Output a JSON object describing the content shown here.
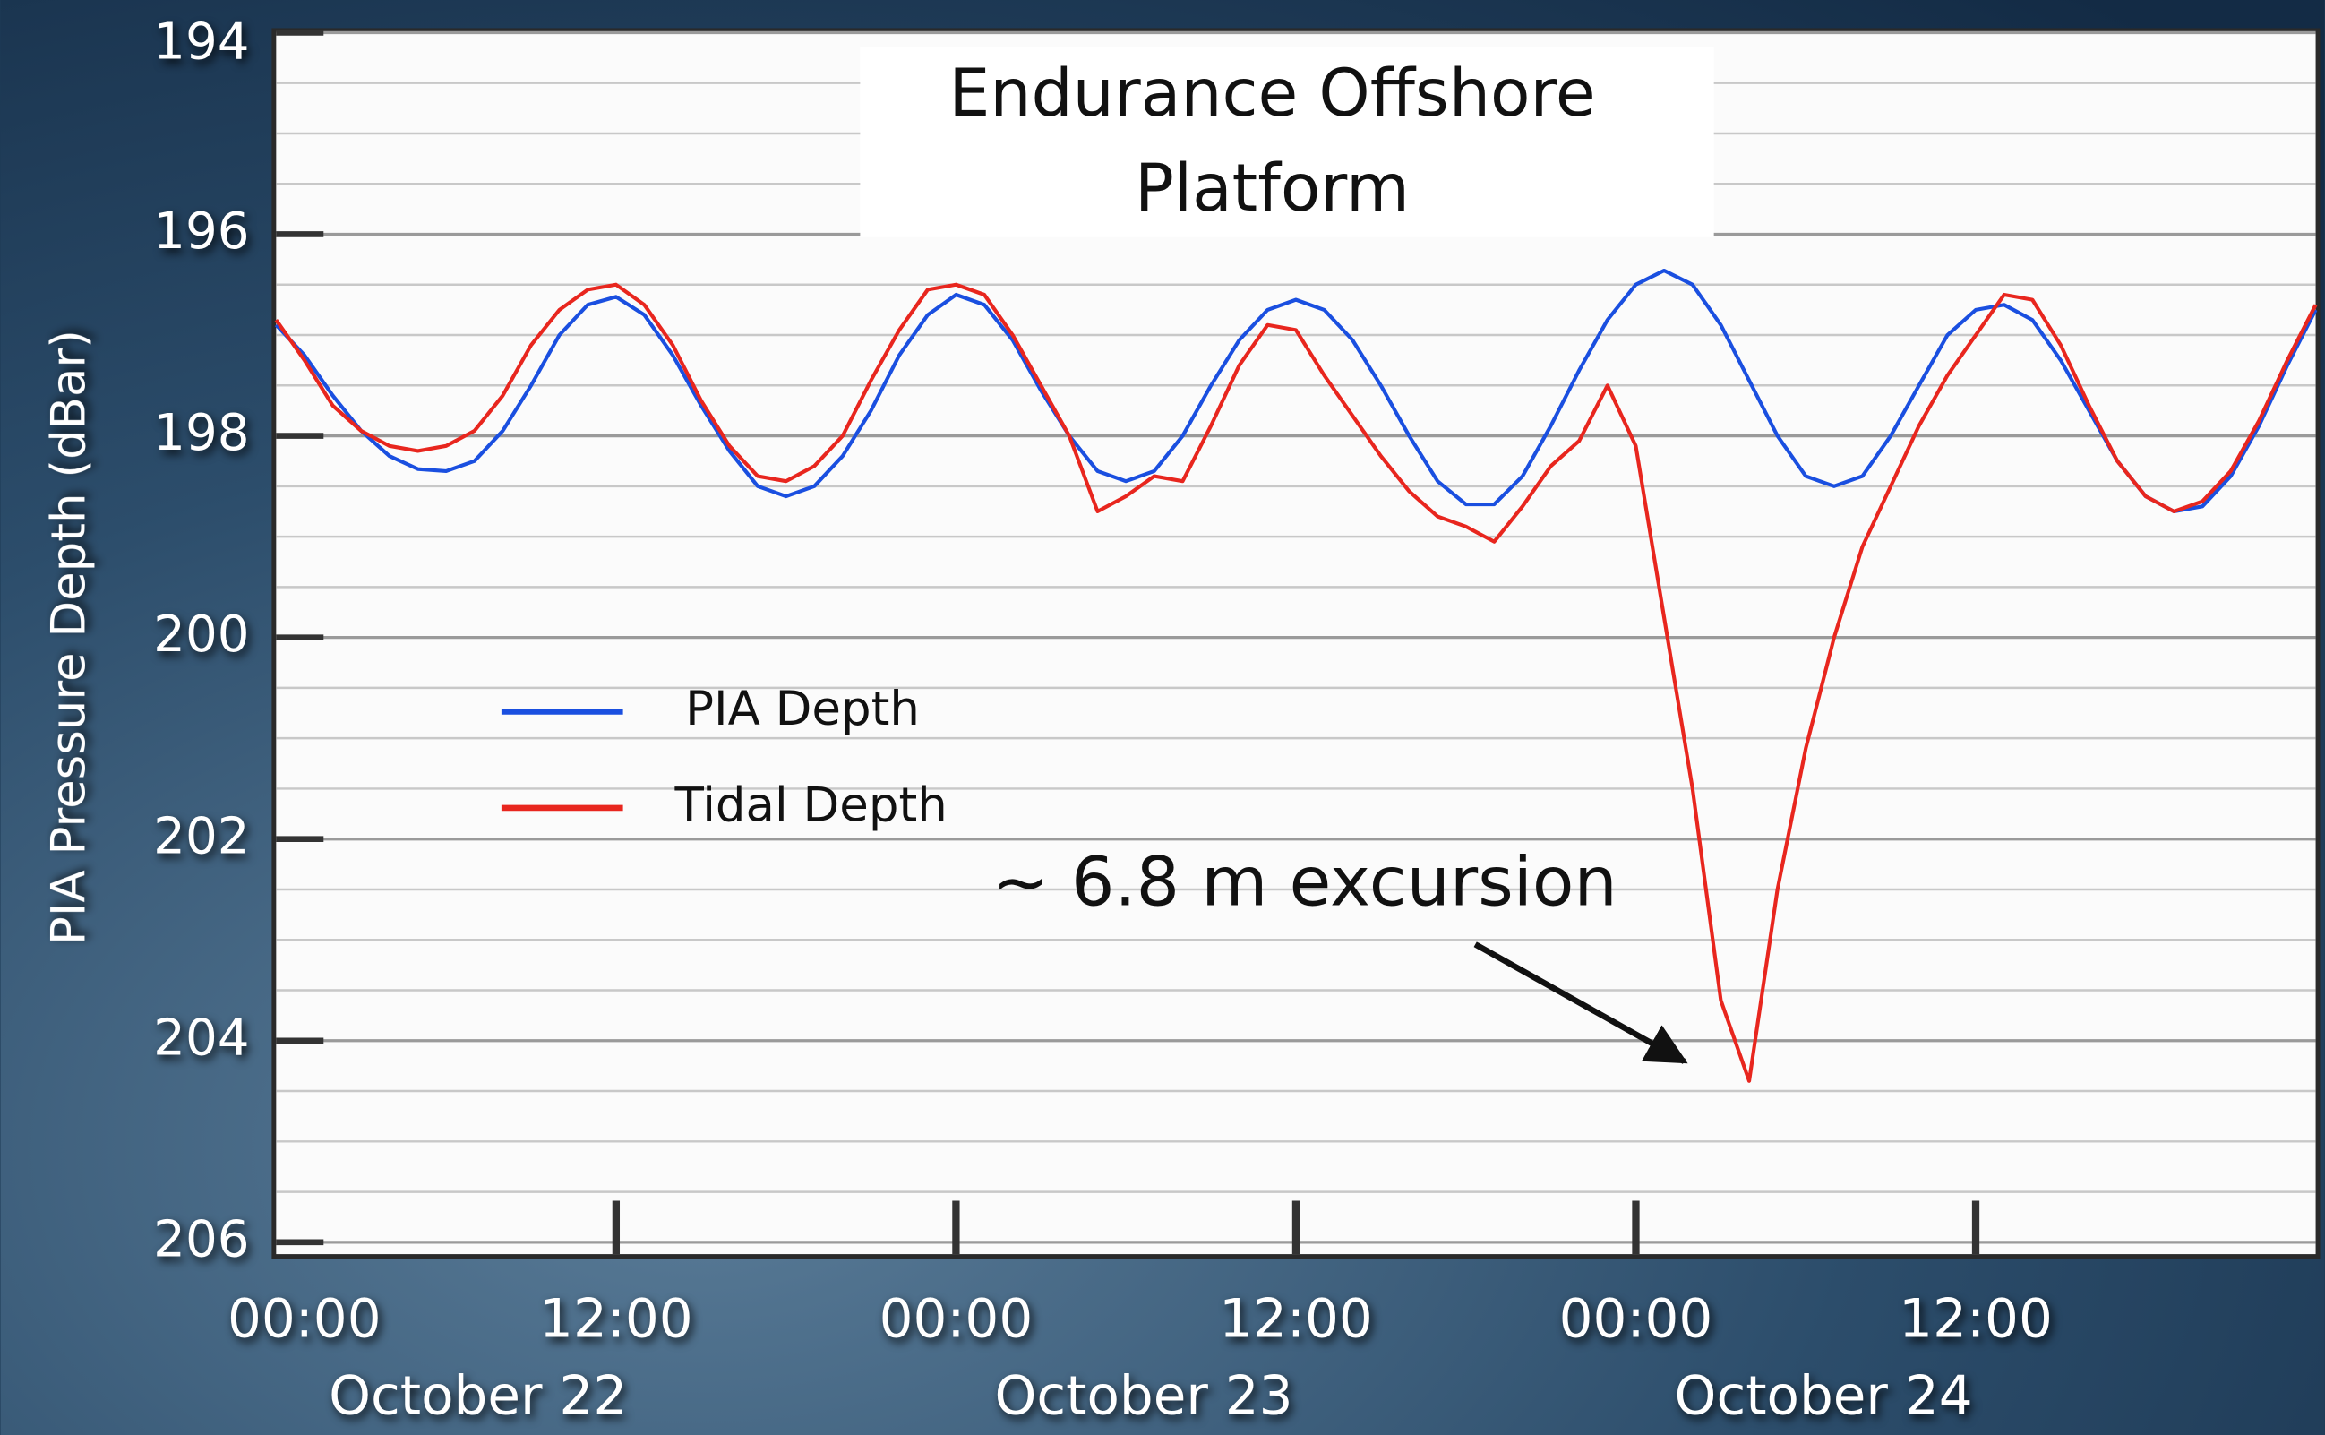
{
  "chart_data": {
    "type": "line",
    "title": "Endurance Offshore Platform",
    "y_label": "PIA Pressure Depth (dBar)",
    "annotation": "~ 6.8 m excursion",
    "x": [
      0,
      1,
      2,
      3,
      4,
      5,
      6,
      7,
      8,
      9,
      10,
      11,
      12,
      13,
      14,
      15,
      16,
      17,
      18,
      19,
      20,
      21,
      22,
      23,
      24,
      25,
      26,
      27,
      28,
      29,
      30,
      31,
      32,
      33,
      34,
      35,
      36,
      37,
      38,
      39,
      40,
      41,
      42,
      43,
      44,
      45,
      46,
      47,
      48,
      49,
      50,
      51,
      52,
      53,
      54,
      55,
      56,
      57,
      58,
      59,
      60,
      61,
      62,
      63,
      64,
      65,
      66,
      67,
      68,
      69,
      70,
      71,
      72
    ],
    "xlim": [
      0,
      72
    ],
    "xticks": [
      {
        "value": 0,
        "label": "00:00"
      },
      {
        "value": 12,
        "label": "12:00"
      },
      {
        "value": 24,
        "label": "00:00"
      },
      {
        "value": 36,
        "label": "12:00"
      },
      {
        "value": 48,
        "label": "00:00"
      },
      {
        "value": 60,
        "label": "12:00"
      }
    ],
    "dates": [
      "October 22",
      "October 23",
      "October 24"
    ],
    "ylim": [
      194,
      206
    ],
    "y_inverted": true,
    "yticks": [
      194,
      196,
      198,
      200,
      202,
      204,
      206
    ],
    "minor_yticks": [
      194.5,
      195,
      195.5,
      196.5,
      197,
      197.5,
      198.5,
      199,
      199.5,
      200.5,
      201,
      201.5,
      202.5,
      203,
      203.5,
      204.5,
      205,
      205.5
    ],
    "grid": true,
    "series": [
      {
        "name": "PIA Depth",
        "color": "#1a4fe0",
        "values": [
          196.9,
          197.2,
          197.6,
          197.95,
          198.2,
          198.33,
          198.35,
          198.25,
          197.95,
          197.5,
          197.0,
          196.7,
          196.62,
          196.8,
          197.2,
          197.7,
          198.15,
          198.5,
          198.6,
          198.5,
          198.2,
          197.75,
          197.2,
          196.8,
          196.6,
          196.7,
          197.05,
          197.55,
          198.0,
          198.35,
          198.45,
          198.35,
          198.0,
          197.5,
          197.05,
          196.75,
          196.65,
          196.75,
          197.05,
          197.5,
          198.0,
          198.45,
          198.68,
          198.68,
          198.4,
          197.9,
          197.35,
          196.85,
          196.5,
          196.36,
          196.5,
          196.9,
          197.45,
          198.0,
          198.4,
          198.5,
          198.4,
          198.0,
          197.5,
          197.0,
          196.75,
          196.7,
          196.85,
          197.25,
          197.75,
          198.25,
          198.6,
          198.75,
          198.7,
          198.4,
          197.9,
          197.3,
          196.75
        ]
      },
      {
        "name": "Tidal Depth",
        "color": "#e8261e",
        "values": [
          196.85,
          197.25,
          197.7,
          197.95,
          198.1,
          198.15,
          198.1,
          197.95,
          197.6,
          197.1,
          196.75,
          196.55,
          196.5,
          196.7,
          197.1,
          197.65,
          198.1,
          198.4,
          198.45,
          198.3,
          198.0,
          197.45,
          196.95,
          196.55,
          196.5,
          196.6,
          197.0,
          197.5,
          198.0,
          198.75,
          198.6,
          198.4,
          198.45,
          197.9,
          197.3,
          196.9,
          196.95,
          197.4,
          197.8,
          198.2,
          198.55,
          198.8,
          198.9,
          199.05,
          198.7,
          198.3,
          198.05,
          197.5,
          198.1,
          199.8,
          201.5,
          203.6,
          204.4,
          202.5,
          201.1,
          200.0,
          199.1,
          198.5,
          197.9,
          197.4,
          197.0,
          196.6,
          196.65,
          197.1,
          197.7,
          198.25,
          198.6,
          198.75,
          198.65,
          198.35,
          197.85,
          197.25,
          196.7
        ]
      }
    ]
  }
}
